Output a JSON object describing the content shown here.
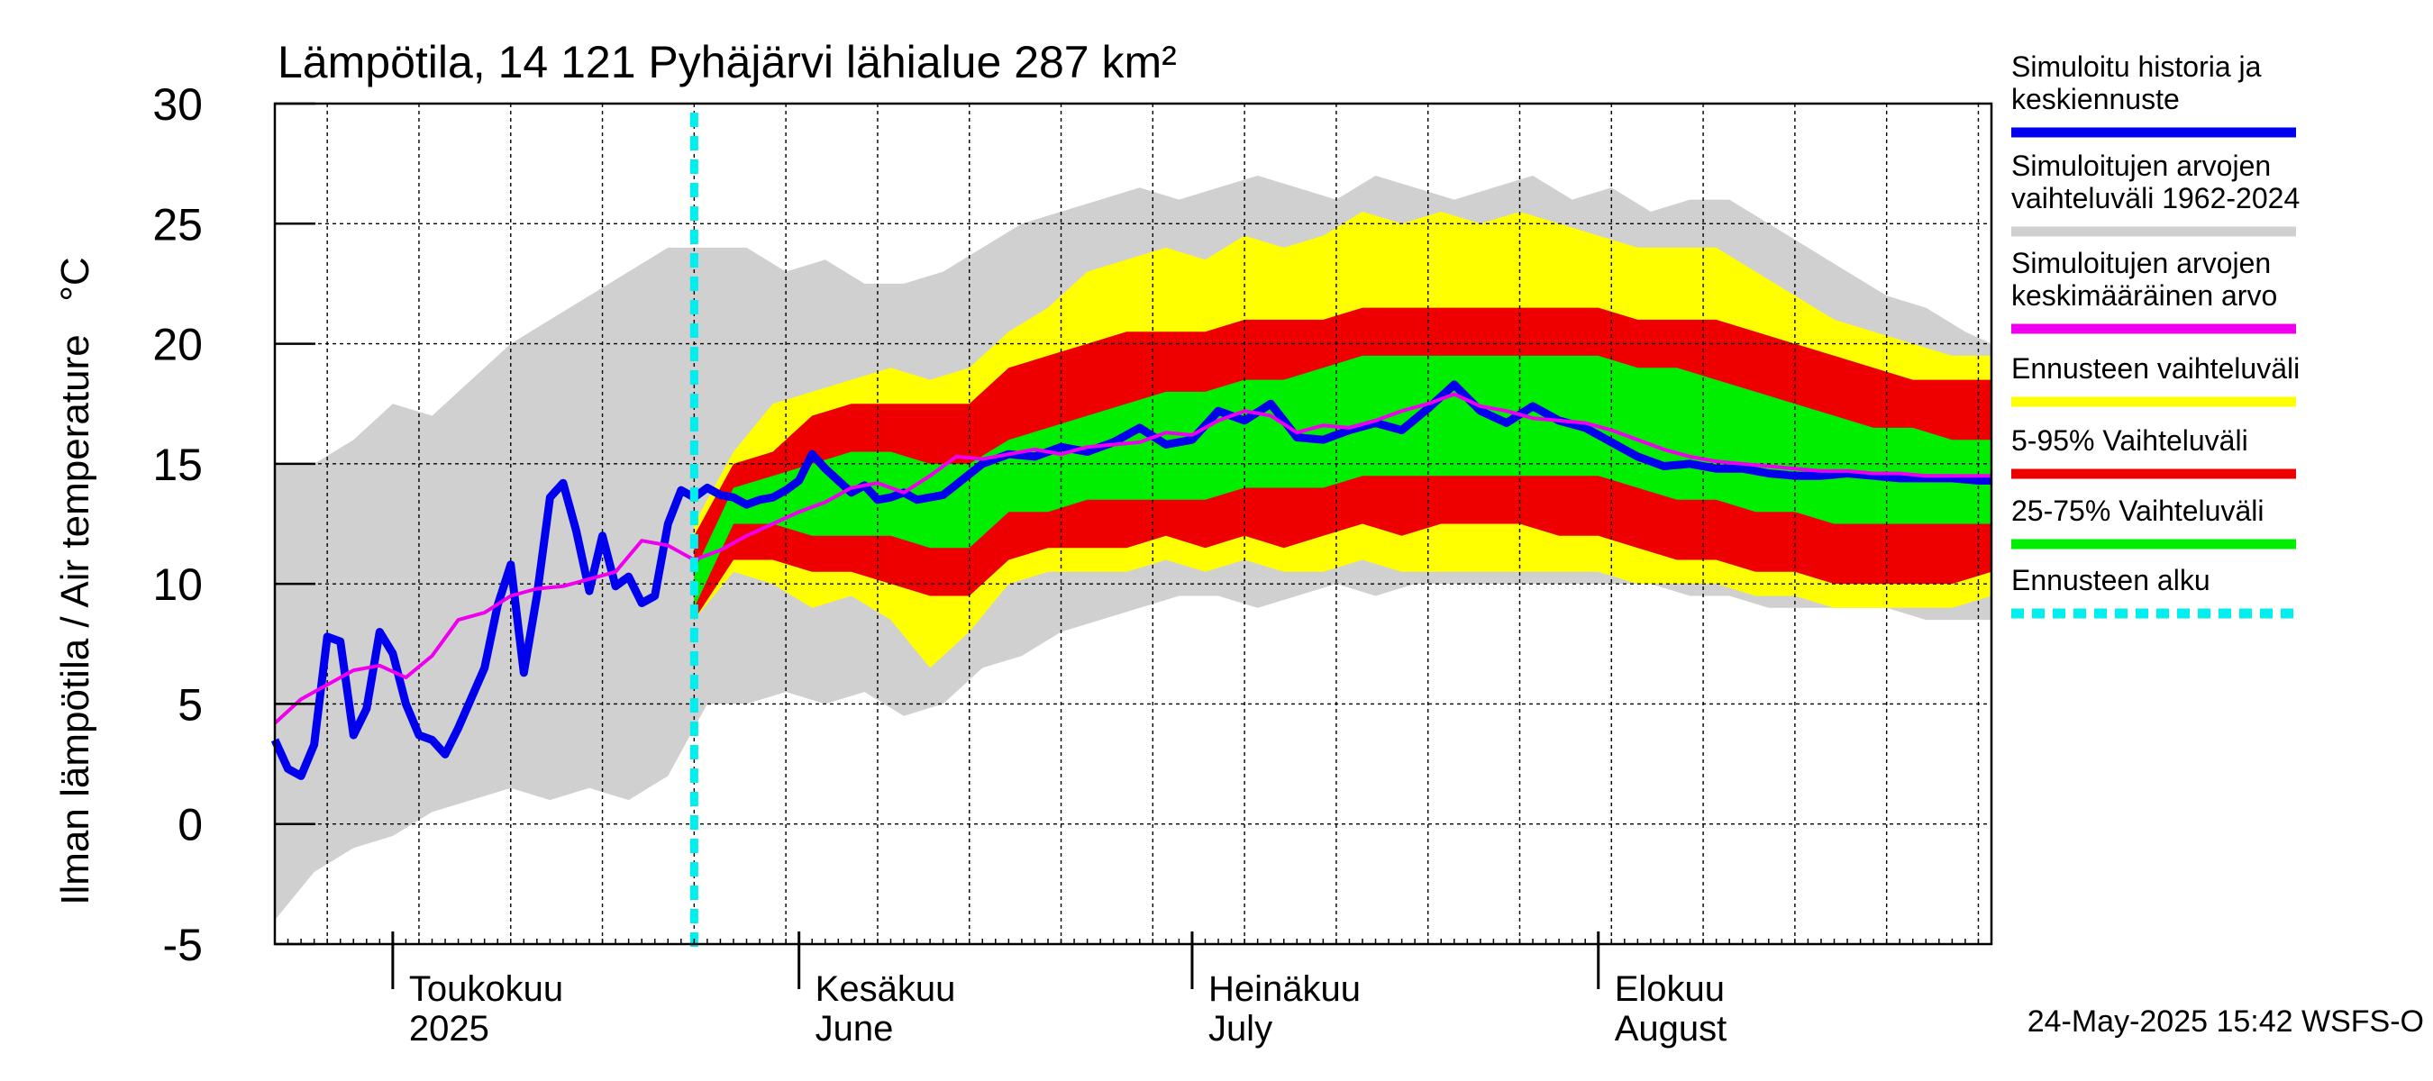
{
  "chart_data": {
    "type": "line",
    "title": "Lämpötila, 14 121 Pyhäjärvi lähialue 287 km²",
    "ylabel": "Ilman lämpötila / Air temperature   °C",
    "ylim": [
      -5,
      30
    ],
    "yticks": [
      -5,
      0,
      5,
      10,
      15,
      20,
      25,
      30
    ],
    "xlim": [
      "2025-04-22",
      "2025-08-31"
    ],
    "month_labels": [
      {
        "line1": "Toukokuu",
        "line2": "2025",
        "date": "2025-05-01"
      },
      {
        "line1": "Kesäkuu",
        "line2": "June",
        "date": "2025-06-01"
      },
      {
        "line1": "Heinäkuu",
        "line2": "July",
        "date": "2025-07-01"
      },
      {
        "line1": "Elokuu",
        "line2": "August",
        "date": "2025-08-01"
      }
    ],
    "forecast_start": "2025-05-24",
    "legend": [
      {
        "text": [
          "Simuloitu historia ja",
          "keskiennuste"
        ],
        "color": "#0000ee",
        "style": "solid"
      },
      {
        "text": [
          "Simuloitujen arvojen",
          "vaihteluväli 1962-2024"
        ],
        "color": "#d0d0d0",
        "style": "solid"
      },
      {
        "text": [
          "Simuloitujen arvojen",
          "keskimääräinen arvo"
        ],
        "color": "#ee00ee",
        "style": "solid"
      },
      {
        "text": [
          "Ennusteen vaihteluväli"
        ],
        "color": "#ffff00",
        "style": "solid"
      },
      {
        "text": [
          "5-95% Vaihteluväli"
        ],
        "color": "#ee0000",
        "style": "solid"
      },
      {
        "text": [
          "25-75% Vaihteluväli"
        ],
        "color": "#00ee00",
        "style": "solid"
      },
      {
        "text": [
          "Ennusteen alku"
        ],
        "color": "#00eeee",
        "style": "dashed"
      }
    ],
    "footer": "24-May-2025 15:42 WSFS-O",
    "series": [
      {
        "name": "Simuloitu historia ja keskiennuste",
        "color": "#0000ee",
        "x": [
          "2025-04-22",
          "2025-04-23",
          "2025-04-24",
          "2025-04-25",
          "2025-04-26",
          "2025-04-27",
          "2025-04-28",
          "2025-04-29",
          "2025-04-30",
          "2025-05-01",
          "2025-05-02",
          "2025-05-03",
          "2025-05-04",
          "2025-05-05",
          "2025-05-06",
          "2025-05-08",
          "2025-05-09",
          "2025-05-10",
          "2025-05-11",
          "2025-05-12",
          "2025-05-13",
          "2025-05-14",
          "2025-05-15",
          "2025-05-16",
          "2025-05-17",
          "2025-05-18",
          "2025-05-19",
          "2025-05-20",
          "2025-05-21",
          "2025-05-22",
          "2025-05-23",
          "2025-05-24",
          "2025-05-25",
          "2025-05-26",
          "2025-05-27",
          "2025-05-28",
          "2025-05-29",
          "2025-05-30",
          "2025-05-31",
          "2025-06-01",
          "2025-06-02",
          "2025-06-03",
          "2025-06-04",
          "2025-06-05",
          "2025-06-06",
          "2025-06-07",
          "2025-06-08",
          "2025-06-09",
          "2025-06-10",
          "2025-06-12",
          "2025-06-15",
          "2025-06-17",
          "2025-06-19",
          "2025-06-21",
          "2025-06-23",
          "2025-06-25",
          "2025-06-27",
          "2025-06-29",
          "2025-07-01",
          "2025-07-03",
          "2025-07-05",
          "2025-07-07",
          "2025-07-09",
          "2025-07-11",
          "2025-07-13",
          "2025-07-15",
          "2025-07-17",
          "2025-07-19",
          "2025-07-21",
          "2025-07-23",
          "2025-07-25",
          "2025-07-27",
          "2025-07-29",
          "2025-07-31",
          "2025-08-02",
          "2025-08-04",
          "2025-08-06",
          "2025-08-08",
          "2025-08-10",
          "2025-08-12",
          "2025-08-14",
          "2025-08-16",
          "2025-08-18",
          "2025-08-20",
          "2025-08-22",
          "2025-08-24",
          "2025-08-26",
          "2025-08-28",
          "2025-08-30",
          "2025-08-31"
        ],
        "y": [
          3.5,
          2.3,
          2.0,
          3.3,
          7.8,
          7.6,
          3.7,
          4.8,
          8.0,
          7.1,
          5.0,
          3.7,
          3.5,
          2.9,
          4.0,
          6.5,
          9.1,
          10.8,
          6.3,
          9.5,
          13.6,
          14.2,
          12.2,
          9.7,
          12.0,
          9.9,
          10.3,
          9.2,
          9.5,
          12.5,
          13.9,
          13.6,
          14.0,
          13.7,
          13.6,
          13.3,
          13.5,
          13.6,
          13.9,
          14.3,
          15.4,
          14.8,
          14.3,
          13.8,
          14.1,
          13.5,
          13.6,
          13.8,
          13.5,
          13.7,
          15.0,
          15.4,
          15.3,
          15.7,
          15.5,
          15.9,
          16.5,
          15.8,
          16.0,
          17.2,
          16.8,
          17.5,
          16.1,
          16.0,
          16.4,
          16.7,
          16.4,
          17.3,
          18.3,
          17.2,
          16.7,
          17.4,
          16.8,
          16.5,
          15.9,
          15.3,
          14.9,
          15.0,
          14.8,
          14.8,
          14.6,
          14.5,
          14.5,
          14.6,
          14.5,
          14.4,
          14.4,
          14.4,
          14.3,
          14.3
        ]
      },
      {
        "name": "Simuloitujen arvojen keskimääräinen arvo",
        "color": "#ee00ee",
        "x": [
          "2025-04-22",
          "2025-04-24",
          "2025-04-26",
          "2025-04-28",
          "2025-04-30",
          "2025-05-02",
          "2025-05-04",
          "2025-05-06",
          "2025-05-08",
          "2025-05-10",
          "2025-05-12",
          "2025-05-14",
          "2025-05-16",
          "2025-05-18",
          "2025-05-20",
          "2025-05-22",
          "2025-05-24",
          "2025-05-26",
          "2025-05-28",
          "2025-05-30",
          "2025-06-01",
          "2025-06-03",
          "2025-06-05",
          "2025-06-07",
          "2025-06-09",
          "2025-06-11",
          "2025-06-13",
          "2025-06-15",
          "2025-06-17",
          "2025-06-19",
          "2025-06-21",
          "2025-06-23",
          "2025-06-25",
          "2025-06-27",
          "2025-06-29",
          "2025-07-01",
          "2025-07-03",
          "2025-07-05",
          "2025-07-07",
          "2025-07-09",
          "2025-07-11",
          "2025-07-13",
          "2025-07-15",
          "2025-07-17",
          "2025-07-19",
          "2025-07-21",
          "2025-07-23",
          "2025-07-25",
          "2025-07-27",
          "2025-07-29",
          "2025-07-31",
          "2025-08-02",
          "2025-08-04",
          "2025-08-06",
          "2025-08-08",
          "2025-08-10",
          "2025-08-12",
          "2025-08-14",
          "2025-08-16",
          "2025-08-18",
          "2025-08-20",
          "2025-08-22",
          "2025-08-24",
          "2025-08-26",
          "2025-08-28",
          "2025-08-31"
        ],
        "y": [
          4.2,
          5.2,
          5.8,
          6.4,
          6.6,
          6.1,
          7.0,
          8.5,
          8.8,
          9.5,
          9.8,
          9.9,
          10.2,
          10.5,
          11.8,
          11.6,
          11.0,
          11.4,
          12.0,
          12.5,
          13.0,
          13.4,
          14.0,
          14.2,
          13.8,
          14.5,
          15.3,
          15.2,
          15.4,
          15.6,
          15.4,
          15.7,
          15.8,
          15.9,
          16.3,
          16.2,
          16.8,
          17.2,
          17.0,
          16.3,
          16.6,
          16.5,
          16.8,
          17.2,
          17.5,
          17.9,
          17.4,
          17.2,
          16.9,
          16.8,
          16.7,
          16.4,
          16.0,
          15.6,
          15.3,
          15.1,
          15.0,
          14.9,
          14.8,
          14.7,
          14.7,
          14.6,
          14.6,
          14.5,
          14.5,
          14.5
        ]
      }
    ],
    "bands": [
      {
        "name": "Simuloitujen arvojen vaihteluväli 1962-2024",
        "color": "#d0d0d0",
        "x": [
          "2025-04-22",
          "2025-04-25",
          "2025-04-28",
          "2025-05-01",
          "2025-05-04",
          "2025-05-07",
          "2025-05-10",
          "2025-05-13",
          "2025-05-16",
          "2025-05-19",
          "2025-05-22",
          "2025-05-25",
          "2025-05-28",
          "2025-05-31",
          "2025-06-03",
          "2025-06-06",
          "2025-06-09",
          "2025-06-12",
          "2025-06-15",
          "2025-06-18",
          "2025-06-21",
          "2025-06-24",
          "2025-06-27",
          "2025-06-30",
          "2025-07-03",
          "2025-07-06",
          "2025-07-09",
          "2025-07-12",
          "2025-07-15",
          "2025-07-18",
          "2025-07-21",
          "2025-07-24",
          "2025-07-27",
          "2025-07-30",
          "2025-08-02",
          "2025-08-05",
          "2025-08-08",
          "2025-08-11",
          "2025-08-14",
          "2025-08-17",
          "2025-08-20",
          "2025-08-23",
          "2025-08-26",
          "2025-08-29",
          "2025-08-31"
        ],
        "low": [
          -4.0,
          -2.0,
          -1.0,
          -0.5,
          0.5,
          1.0,
          1.5,
          1.0,
          1.5,
          1.0,
          2.0,
          5.0,
          5.0,
          5.5,
          5.0,
          5.5,
          4.5,
          5.0,
          6.5,
          7.0,
          8.0,
          8.5,
          9.0,
          9.5,
          9.5,
          9.0,
          9.5,
          10.0,
          9.5,
          10.0,
          10.0,
          10.0,
          10.0,
          10.0,
          10.0,
          10.0,
          9.5,
          9.5,
          9.0,
          9.0,
          9.0,
          9.0,
          8.5,
          8.5,
          8.5
        ],
        "high": [
          15.0,
          15.0,
          16.0,
          17.5,
          17.0,
          18.5,
          20.0,
          21.0,
          22.0,
          23.0,
          24.0,
          24.0,
          24.0,
          23.0,
          23.5,
          22.5,
          22.5,
          23.0,
          24.0,
          25.0,
          25.5,
          26.0,
          26.5,
          26.0,
          26.5,
          27.0,
          26.5,
          26.0,
          27.0,
          26.5,
          26.0,
          26.5,
          27.0,
          26.0,
          26.5,
          25.5,
          26.0,
          26.0,
          25.0,
          24.0,
          23.0,
          22.0,
          21.5,
          20.5,
          20.0
        ]
      },
      {
        "name": "Ennusteen vaihteluväli",
        "color": "#ffff00",
        "x": [
          "2025-05-24",
          "2025-05-27",
          "2025-05-30",
          "2025-06-02",
          "2025-06-05",
          "2025-06-08",
          "2025-06-11",
          "2025-06-14",
          "2025-06-17",
          "2025-06-20",
          "2025-06-23",
          "2025-06-26",
          "2025-06-29",
          "2025-07-02",
          "2025-07-05",
          "2025-07-08",
          "2025-07-11",
          "2025-07-14",
          "2025-07-17",
          "2025-07-20",
          "2025-07-23",
          "2025-07-26",
          "2025-07-29",
          "2025-08-01",
          "2025-08-04",
          "2025-08-07",
          "2025-08-10",
          "2025-08-13",
          "2025-08-16",
          "2025-08-19",
          "2025-08-22",
          "2025-08-25",
          "2025-08-28",
          "2025-08-31"
        ],
        "low": [
          8.5,
          10.5,
          10.0,
          9.0,
          9.5,
          8.5,
          6.5,
          8.0,
          10.0,
          10.5,
          10.5,
          10.5,
          11.0,
          10.5,
          11.0,
          10.5,
          10.5,
          11.0,
          10.5,
          10.5,
          10.5,
          10.5,
          10.5,
          10.5,
          10.0,
          10.0,
          10.0,
          9.5,
          9.5,
          9.0,
          9.0,
          9.0,
          9.0,
          9.5
        ],
        "high": [
          12.5,
          15.5,
          17.5,
          18.0,
          18.5,
          19.0,
          18.5,
          19.0,
          20.5,
          21.5,
          23.0,
          23.5,
          24.0,
          23.5,
          24.5,
          24.0,
          24.5,
          25.5,
          25.0,
          25.5,
          25.0,
          25.5,
          25.0,
          24.5,
          24.0,
          24.0,
          24.0,
          23.0,
          22.0,
          21.0,
          20.5,
          20.0,
          19.5,
          19.5
        ]
      },
      {
        "name": "5-95% Vaihteluväli",
        "color": "#ee0000",
        "x": [
          "2025-05-24",
          "2025-05-27",
          "2025-05-30",
          "2025-06-02",
          "2025-06-05",
          "2025-06-08",
          "2025-06-11",
          "2025-06-14",
          "2025-06-17",
          "2025-06-20",
          "2025-06-23",
          "2025-06-26",
          "2025-06-29",
          "2025-07-02",
          "2025-07-05",
          "2025-07-08",
          "2025-07-11",
          "2025-07-14",
          "2025-07-17",
          "2025-07-20",
          "2025-07-23",
          "2025-07-26",
          "2025-07-29",
          "2025-08-01",
          "2025-08-04",
          "2025-08-07",
          "2025-08-10",
          "2025-08-13",
          "2025-08-16",
          "2025-08-19",
          "2025-08-22",
          "2025-08-25",
          "2025-08-28",
          "2025-08-31"
        ],
        "low": [
          8.5,
          11.0,
          11.0,
          10.5,
          10.5,
          10.0,
          9.5,
          9.5,
          11.0,
          11.5,
          11.5,
          11.5,
          12.0,
          11.5,
          12.0,
          11.5,
          12.0,
          12.5,
          12.0,
          12.5,
          12.5,
          12.5,
          12.0,
          12.0,
          11.5,
          11.0,
          11.0,
          10.5,
          10.5,
          10.0,
          10.0,
          10.0,
          10.0,
          10.5
        ],
        "high": [
          12.0,
          15.0,
          15.5,
          17.0,
          17.5,
          17.5,
          17.5,
          17.5,
          19.0,
          19.5,
          20.0,
          20.5,
          20.5,
          20.5,
          21.0,
          21.0,
          21.0,
          21.5,
          21.5,
          21.5,
          21.5,
          21.5,
          21.5,
          21.5,
          21.0,
          21.0,
          21.0,
          20.5,
          20.0,
          19.5,
          19.0,
          18.5,
          18.5,
          18.5
        ]
      },
      {
        "name": "25-75% Vaihteluväli",
        "color": "#00ee00",
        "x": [
          "2025-05-24",
          "2025-05-27",
          "2025-05-30",
          "2025-06-02",
          "2025-06-05",
          "2025-06-08",
          "2025-06-11",
          "2025-06-14",
          "2025-06-17",
          "2025-06-20",
          "2025-06-23",
          "2025-06-26",
          "2025-06-29",
          "2025-07-02",
          "2025-07-05",
          "2025-07-08",
          "2025-07-11",
          "2025-07-14",
          "2025-07-17",
          "2025-07-20",
          "2025-07-23",
          "2025-07-26",
          "2025-07-29",
          "2025-08-01",
          "2025-08-04",
          "2025-08-07",
          "2025-08-10",
          "2025-08-13",
          "2025-08-16",
          "2025-08-19",
          "2025-08-22",
          "2025-08-25",
          "2025-08-28",
          "2025-08-31"
        ],
        "low": [
          9.0,
          12.5,
          12.5,
          12.0,
          12.0,
          12.0,
          11.5,
          11.5,
          13.0,
          13.0,
          13.5,
          13.5,
          13.5,
          13.5,
          14.0,
          14.0,
          14.0,
          14.5,
          14.5,
          14.5,
          14.5,
          14.5,
          14.5,
          14.5,
          14.0,
          13.5,
          13.5,
          13.0,
          13.0,
          12.5,
          12.5,
          12.5,
          12.5,
          12.5
        ],
        "high": [
          10.5,
          14.0,
          14.5,
          15.0,
          15.5,
          15.5,
          15.0,
          15.0,
          16.0,
          16.5,
          17.0,
          17.5,
          18.0,
          18.0,
          18.5,
          18.5,
          19.0,
          19.5,
          19.5,
          19.5,
          19.5,
          19.5,
          19.5,
          19.5,
          19.0,
          19.0,
          18.5,
          18.0,
          17.5,
          17.0,
          16.5,
          16.5,
          16.0,
          16.0
        ]
      }
    ]
  }
}
